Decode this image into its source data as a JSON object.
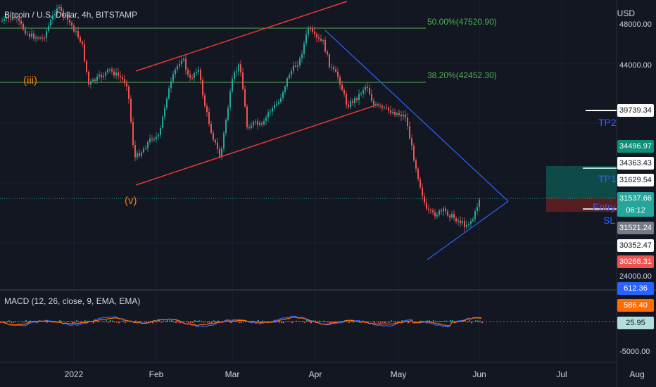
{
  "header": {
    "title": "Bitcoin / U.S. Dollar, 4h, BITSTAMP",
    "currency": "USD"
  },
  "fib_levels": {
    "level_50": "50.00%(47520.90)",
    "level_382": "38.20%(42452.30)"
  },
  "wave_labels": {
    "iii": "(iii)",
    "v": "(v)"
  },
  "trade_labels": {
    "tp2": "TP2",
    "tp1": "TP1",
    "entry": "Entry",
    "sl": "SL"
  },
  "price_axis": {
    "ticks": [
      "48000.00",
      "44000.00",
      "24000.00",
      "-5000.00"
    ],
    "tags": {
      "tp2": "39739.34",
      "green_top": "34496.97",
      "white_34363": "34363.43",
      "tp1": "31629.54",
      "last_price": "31537.66",
      "countdown": "06:12",
      "gray": "31521.24",
      "white_30352": "30352.47",
      "sl": "30268.31",
      "macd_line": "612.36",
      "signal_line": "586.40",
      "histogram": "25.95"
    }
  },
  "macd": {
    "title": "MACD (12, 26, close, 9, EMA, EMA)"
  },
  "time_axis": {
    "ticks": [
      "2022",
      "Feb",
      "Mar",
      "Apr",
      "May",
      "Jun",
      "Jul",
      "Aug"
    ]
  },
  "colors": {
    "background": "#131722",
    "grid": "#1e2230",
    "up_candle": "#26a69a",
    "down_candle": "#ef5350",
    "channel": "#e53935",
    "triangle": "#2962ff",
    "fib": "#4caf50",
    "wave_label": "#f57c00",
    "tp_label": "#2962ff",
    "macd_line": "#2962ff",
    "signal_line": "#ff6d00"
  }
}
